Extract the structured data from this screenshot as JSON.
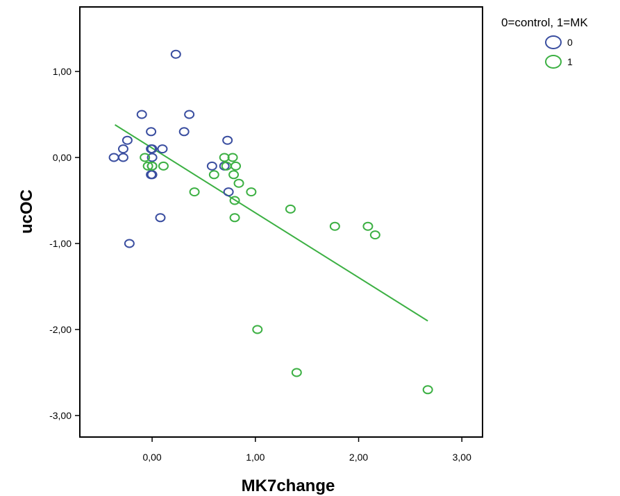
{
  "chart_data": {
    "type": "scatter",
    "title": "",
    "xlabel": "MK7change",
    "ylabel": "ucOC",
    "xlim": [
      -0.7,
      3.2
    ],
    "ylim": [
      -3.25,
      1.75
    ],
    "x_ticks": [
      0,
      1,
      2,
      3
    ],
    "x_tick_labels": [
      "0,00",
      "1,00",
      "2,00",
      "3,00"
    ],
    "y_ticks": [
      1,
      0,
      -1,
      -2,
      -3
    ],
    "y_tick_labels": [
      "1,00",
      "0,00",
      "-1,00",
      "-2,00",
      "-3,00"
    ],
    "grid": false,
    "legend": {
      "title": "0=control, 1=MK",
      "position": "top-right-outside",
      "entries": [
        {
          "label": "0",
          "color": "#3a4ea0"
        },
        {
          "label": "1",
          "color": "#3cb043"
        }
      ]
    },
    "series": [
      {
        "name": "0",
        "color": "#3a4ea0",
        "points": [
          [
            -0.37,
            0.0
          ],
          [
            -0.28,
            0.1
          ],
          [
            -0.28,
            0.0
          ],
          [
            -0.24,
            0.2
          ],
          [
            -0.22,
            -1.0
          ],
          [
            -0.1,
            0.5
          ],
          [
            -0.01,
            0.3
          ],
          [
            -0.01,
            0.1
          ],
          [
            0.0,
            0.1
          ],
          [
            0.0,
            0.0
          ],
          [
            0.0,
            -0.1
          ],
          [
            -0.01,
            -0.2
          ],
          [
            0.0,
            -0.2
          ],
          [
            0.08,
            -0.7
          ],
          [
            0.1,
            0.1
          ],
          [
            0.23,
            1.2
          ],
          [
            0.31,
            0.3
          ],
          [
            0.36,
            0.5
          ],
          [
            0.58,
            -0.1
          ],
          [
            0.7,
            -0.1
          ],
          [
            0.73,
            0.2
          ],
          [
            0.74,
            -0.4
          ]
        ]
      },
      {
        "name": "1",
        "color": "#3cb043",
        "points": [
          [
            -0.07,
            0.0
          ],
          [
            -0.04,
            -0.1
          ],
          [
            0.0,
            -0.1
          ],
          [
            0.11,
            -0.1
          ],
          [
            0.41,
            -0.4
          ],
          [
            0.6,
            -0.2
          ],
          [
            0.7,
            0.0
          ],
          [
            0.72,
            -0.1
          ],
          [
            0.78,
            0.0
          ],
          [
            0.79,
            -0.2
          ],
          [
            0.81,
            -0.1
          ],
          [
            0.8,
            -0.5
          ],
          [
            0.8,
            -0.7
          ],
          [
            0.84,
            -0.3
          ],
          [
            0.96,
            -0.4
          ],
          [
            1.02,
            -2.0
          ],
          [
            1.34,
            -0.6
          ],
          [
            1.4,
            -2.5
          ],
          [
            1.77,
            -0.8
          ],
          [
            2.09,
            -0.8
          ],
          [
            2.16,
            -0.9
          ],
          [
            2.67,
            -2.7
          ]
        ]
      }
    ],
    "fit_line": {
      "color": "#3cb043",
      "from": [
        -0.36,
        0.38
      ],
      "to": [
        2.67,
        -1.9
      ]
    }
  }
}
